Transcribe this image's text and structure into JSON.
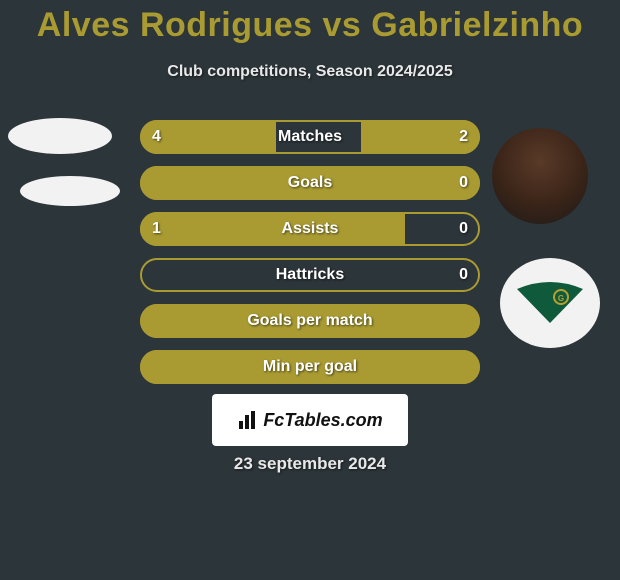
{
  "title": "Alves Rodrigues vs Gabrielzinho",
  "subtitle": "Club competitions, Season 2024/2025",
  "date": "23 september 2024",
  "branding_text": "FcTables.com",
  "colors": {
    "background": "#2c3539",
    "accent": "#a99b32",
    "text": "#ffffff",
    "subtitle_text": "#e8e8e8",
    "branding_bg": "#ffffff",
    "branding_text": "#111111"
  },
  "bars": [
    {
      "label": "Matches",
      "left_val": "4",
      "right_val": "2",
      "left_pct": 40,
      "right_pct": 35,
      "show_left": true,
      "show_right": true
    },
    {
      "label": "Goals",
      "left_val": "",
      "right_val": "0",
      "left_pct": 0,
      "right_pct": 0,
      "show_left": false,
      "show_right": true,
      "full_fill": true
    },
    {
      "label": "Assists",
      "left_val": "1",
      "right_val": "0",
      "left_pct": 78,
      "right_pct": 0,
      "show_left": true,
      "show_right": true
    },
    {
      "label": "Hattricks",
      "left_val": "",
      "right_val": "0",
      "left_pct": 0,
      "right_pct": 0,
      "show_left": false,
      "show_right": true
    },
    {
      "label": "Goals per match",
      "left_val": "",
      "right_val": "",
      "left_pct": 0,
      "right_pct": 0,
      "show_left": false,
      "show_right": false,
      "full_fill": true
    },
    {
      "label": "Min per goal",
      "left_val": "",
      "right_val": "",
      "left_pct": 0,
      "right_pct": 0,
      "show_left": false,
      "show_right": false,
      "full_fill": true
    }
  ]
}
